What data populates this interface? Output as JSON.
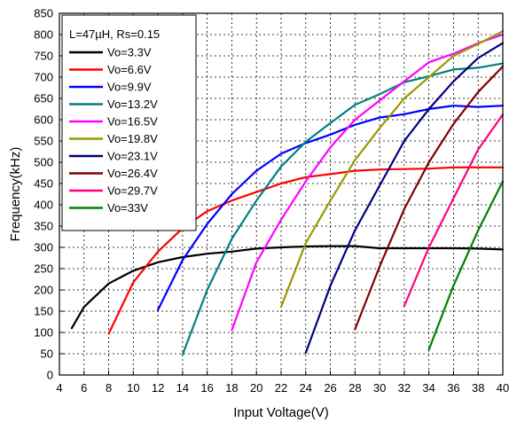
{
  "chart_data": {
    "type": "line",
    "title": "",
    "xlabel": "Input Voltage(V)",
    "ylabel": "Frequency(kHz)",
    "xlim": [
      4,
      40
    ],
    "ylim": [
      0,
      850
    ],
    "xticks": [
      4,
      6,
      8,
      10,
      12,
      14,
      16,
      18,
      20,
      22,
      24,
      26,
      28,
      30,
      32,
      34,
      36,
      38,
      40
    ],
    "yticks": [
      0,
      50,
      100,
      150,
      200,
      250,
      300,
      350,
      400,
      450,
      500,
      550,
      600,
      650,
      700,
      750,
      800,
      850
    ],
    "grid": true,
    "legend_position": "top-left",
    "legend_title": "L=47µH, Rs=0.15",
    "series": [
      {
        "name": "Vo=3.3V",
        "color": "#000000",
        "x": [
          5,
          6,
          8,
          10,
          12,
          14,
          16,
          18,
          20,
          22,
          24,
          26,
          28,
          30,
          32,
          34,
          36,
          38,
          40
        ],
        "y": [
          110,
          160,
          215,
          245,
          265,
          277,
          285,
          290,
          297,
          300,
          302,
          303,
          303,
          298,
          298,
          298,
          298,
          297,
          295
        ]
      },
      {
        "name": "Vo=6.6V",
        "color": "#ff0000",
        "x": [
          8,
          10,
          12,
          14,
          16,
          18,
          20,
          22,
          24,
          26,
          28,
          30,
          32,
          34,
          36,
          38,
          40
        ],
        "y": [
          97,
          218,
          290,
          345,
          385,
          410,
          430,
          450,
          465,
          472,
          480,
          483,
          484,
          485,
          488,
          488,
          488
        ]
      },
      {
        "name": "Vo=9.9V",
        "color": "#0000ff",
        "x": [
          12,
          14,
          16,
          18,
          20,
          22,
          24,
          26,
          28,
          30,
          32,
          34,
          36,
          38,
          40
        ],
        "y": [
          153,
          270,
          355,
          425,
          480,
          520,
          545,
          565,
          588,
          605,
          613,
          625,
          633,
          630,
          633
        ]
      },
      {
        "name": "Vo=13.2V",
        "color": "#008080",
        "x": [
          14,
          16,
          18,
          20,
          22,
          24,
          26,
          28,
          30,
          32,
          34,
          36,
          38,
          40
        ],
        "y": [
          48,
          200,
          320,
          410,
          490,
          548,
          592,
          635,
          660,
          688,
          702,
          718,
          722,
          732
        ]
      },
      {
        "name": "Vo=16.5V",
        "color": "#ff00ff",
        "x": [
          18,
          20,
          22,
          24,
          26,
          28,
          30,
          32,
          34,
          36,
          38,
          40
        ],
        "y": [
          105,
          265,
          365,
          455,
          535,
          600,
          645,
          690,
          735,
          755,
          780,
          800
        ]
      },
      {
        "name": "Vo=19.8V",
        "color": "#999900",
        "x": [
          22,
          24,
          26,
          28,
          30,
          32,
          34,
          36,
          38,
          40
        ],
        "y": [
          160,
          310,
          410,
          505,
          580,
          650,
          700,
          750,
          778,
          808
        ]
      },
      {
        "name": "Vo=23.1V",
        "color": "#000080",
        "x": [
          24,
          26,
          28,
          30,
          32,
          34,
          36,
          38,
          40
        ],
        "y": [
          52,
          210,
          340,
          445,
          550,
          625,
          690,
          745,
          780
        ]
      },
      {
        "name": "Vo=26.4V",
        "color": "#800000",
        "x": [
          28,
          30,
          32,
          34,
          36,
          38,
          40
        ],
        "y": [
          107,
          255,
          390,
          500,
          590,
          665,
          725
        ]
      },
      {
        "name": "Vo=29.7V",
        "color": "#ff0080",
        "x": [
          32,
          34,
          36,
          38,
          40
        ],
        "y": [
          162,
          300,
          415,
          530,
          612
        ]
      },
      {
        "name": "Vo=33V",
        "color": "#008000",
        "x": [
          34,
          36,
          38,
          40
        ],
        "y": [
          60,
          210,
          340,
          455
        ]
      }
    ]
  }
}
